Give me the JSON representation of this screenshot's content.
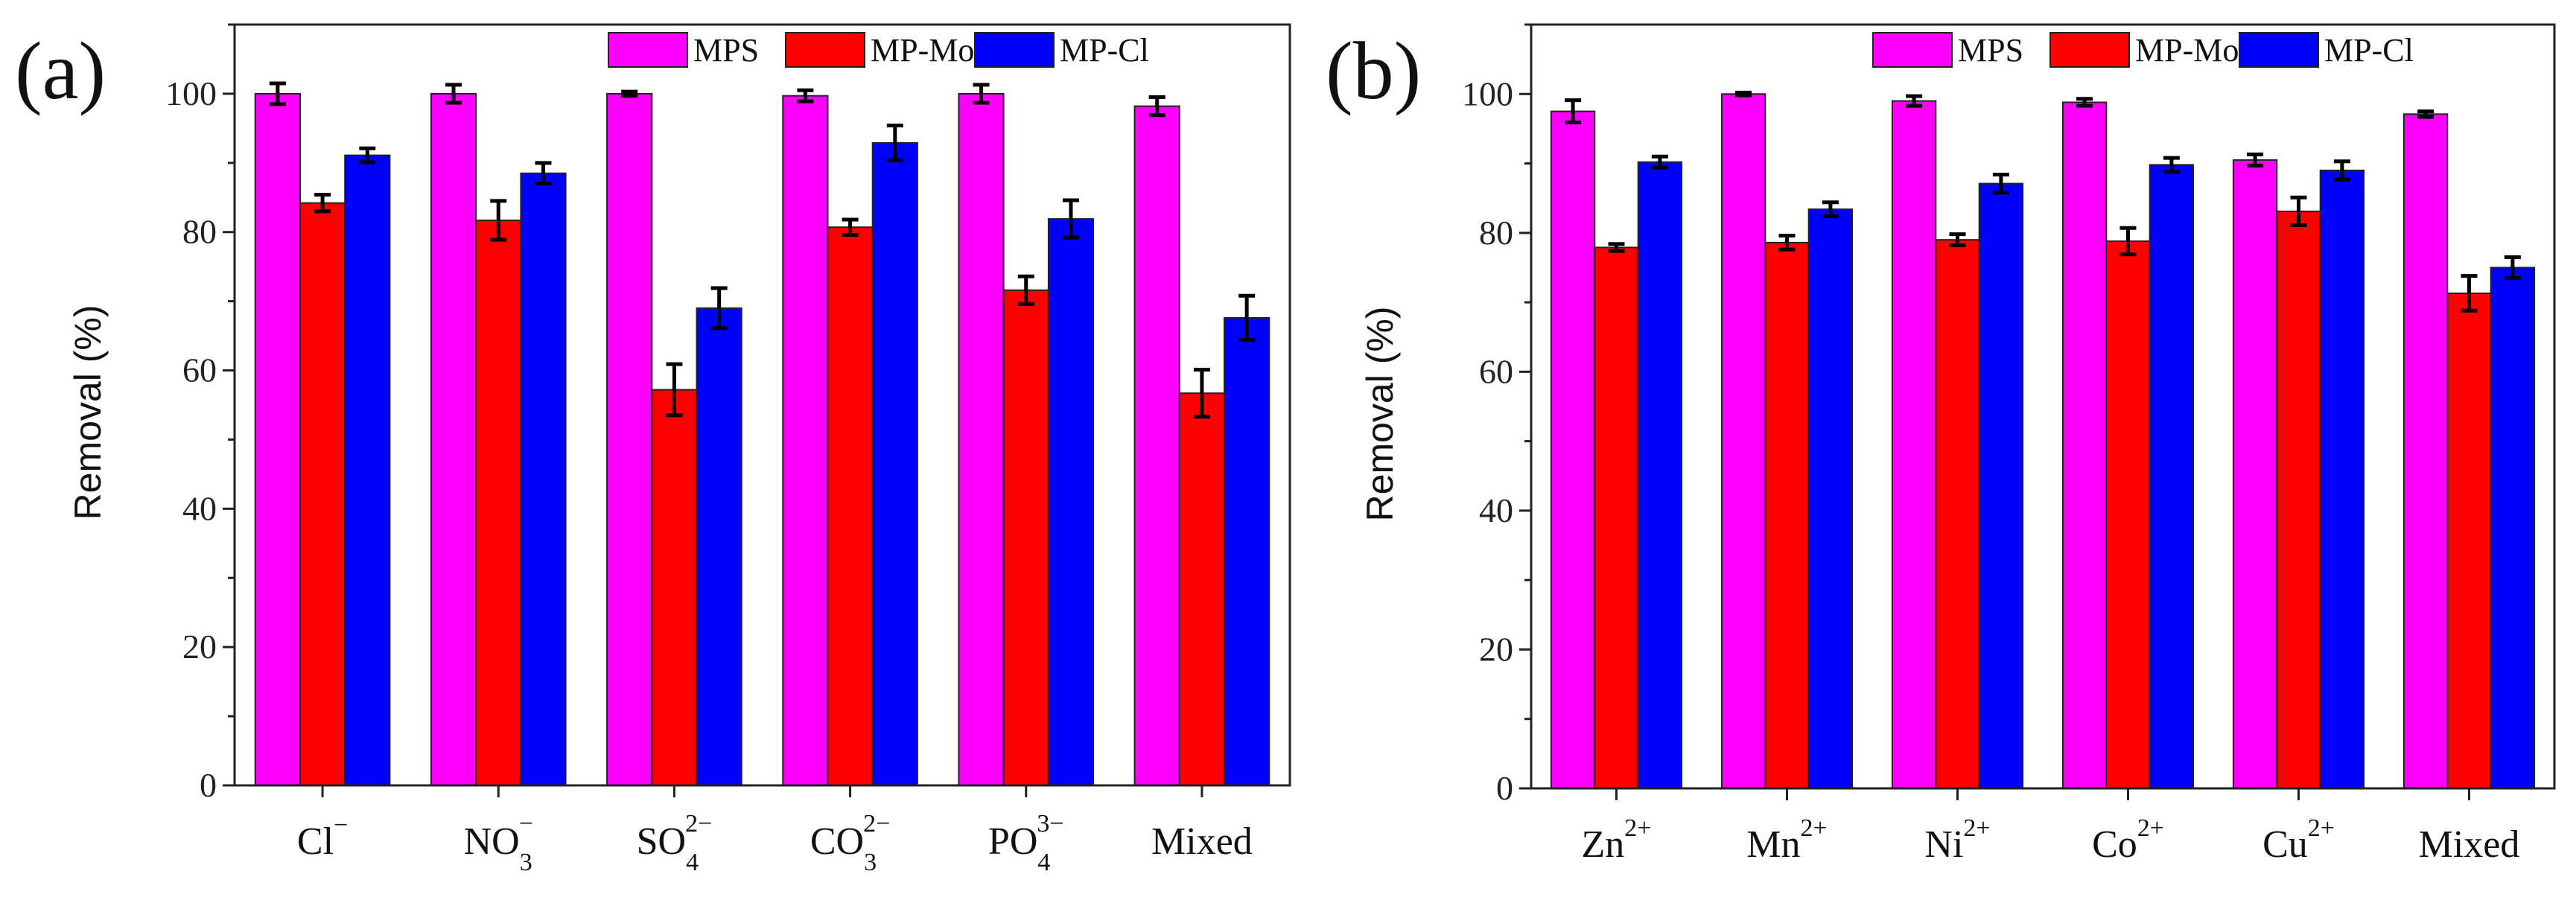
{
  "colors": {
    "MPS": "#ff00ff",
    "MP-Mo": "#ff0000",
    "MP-Cl": "#0000ff"
  },
  "chart_data": [
    {
      "type": "bar",
      "panel_label": "(a)",
      "ylabel": "Removal (%)",
      "xlabel": "",
      "ylim": [
        0,
        110
      ],
      "yticks": [
        0,
        20,
        40,
        60,
        80,
        100
      ],
      "legend": [
        "MPS",
        "MP-Mo",
        "MP-Cl"
      ],
      "legend_position": "top-right",
      "categories": [
        {
          "base": "Cl",
          "sub": "",
          "sup": "−"
        },
        {
          "base": "NO",
          "sub": "3",
          "sup": "−"
        },
        {
          "base": "SO",
          "sub": "4",
          "sup": "2−"
        },
        {
          "base": "CO",
          "sub": "3",
          "sup": "2−"
        },
        {
          "base": "PO",
          "sub": "4",
          "sup": "3−"
        },
        {
          "base": "Mixed",
          "sub": "",
          "sup": ""
        }
      ],
      "series": [
        {
          "name": "MPS",
          "values": [
            100,
            100,
            100,
            99.7,
            100,
            98.2
          ],
          "errors": [
            1.5,
            1.3,
            0.3,
            0.8,
            1.3,
            1.3
          ]
        },
        {
          "name": "MP-Mo",
          "values": [
            84.2,
            81.7,
            57.2,
            80.7,
            71.6,
            56.7
          ],
          "errors": [
            1.2,
            2.8,
            3.7,
            1.1,
            2.0,
            3.4
          ]
        },
        {
          "name": "MP-Cl",
          "values": [
            91.1,
            88.5,
            69.0,
            92.9,
            81.9,
            67.6
          ],
          "errors": [
            1.0,
            1.5,
            2.9,
            2.5,
            2.7,
            3.2
          ]
        }
      ]
    },
    {
      "type": "bar",
      "panel_label": "(b)",
      "ylabel": "Removal (%)",
      "xlabel": "",
      "ylim": [
        0,
        110
      ],
      "yticks": [
        0,
        20,
        40,
        60,
        80,
        100
      ],
      "legend": [
        "MPS",
        "MP-Mo",
        "MP-Cl"
      ],
      "legend_position": "top-right",
      "categories": [
        {
          "base": "Zn",
          "sub": "",
          "sup": "2+"
        },
        {
          "base": "Mn",
          "sub": "",
          "sup": "2+"
        },
        {
          "base": "Ni",
          "sub": "",
          "sup": "2+"
        },
        {
          "base": "Co",
          "sub": "",
          "sup": "2+"
        },
        {
          "base": "Cu",
          "sub": "",
          "sup": "2+"
        },
        {
          "base": "Mixed",
          "sub": "",
          "sup": ""
        }
      ],
      "series": [
        {
          "name": "MPS",
          "values": [
            97.5,
            100,
            99.0,
            98.8,
            90.5,
            97.1
          ],
          "errors": [
            1.6,
            0.2,
            0.7,
            0.5,
            0.8,
            0.4
          ]
        },
        {
          "name": "MP-Mo",
          "values": [
            77.9,
            78.6,
            79.0,
            78.8,
            83.1,
            71.3
          ],
          "errors": [
            0.5,
            1.0,
            0.8,
            1.9,
            2.0,
            2.5
          ]
        },
        {
          "name": "MP-Cl",
          "values": [
            90.2,
            83.4,
            87.1,
            89.8,
            89.0,
            75.0
          ],
          "errors": [
            0.8,
            1.0,
            1.3,
            1.0,
            1.3,
            1.5
          ]
        }
      ]
    }
  ]
}
